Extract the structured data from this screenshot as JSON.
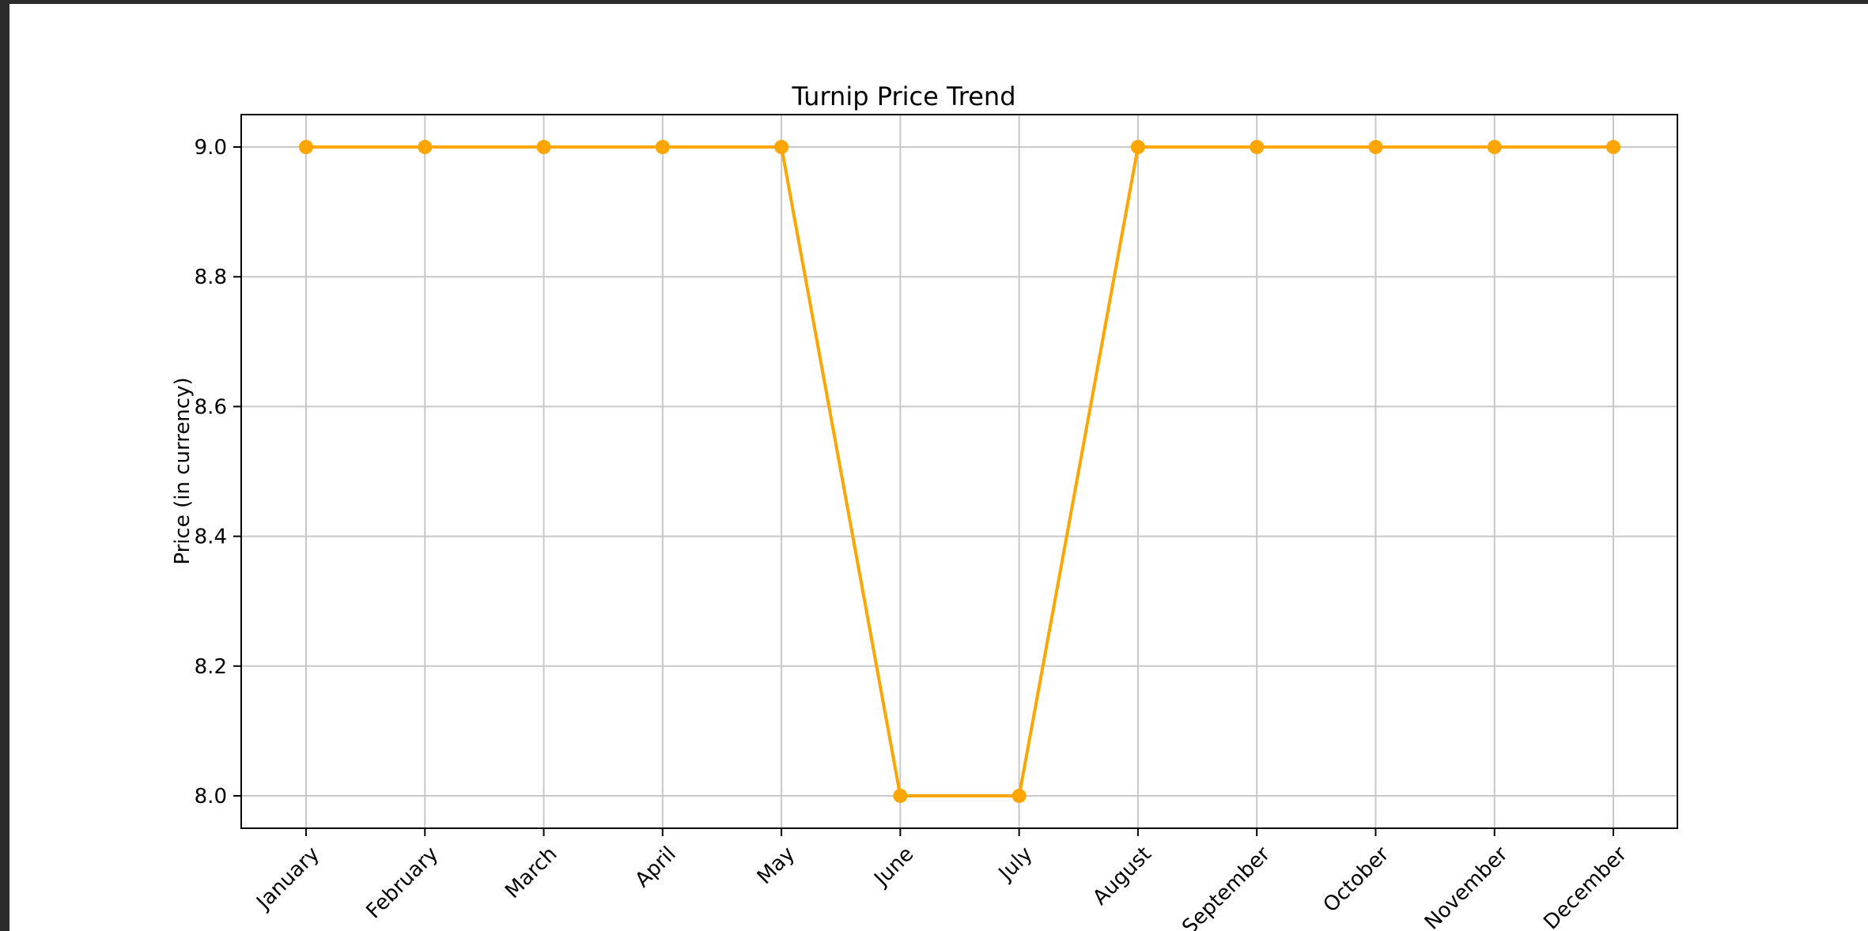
{
  "chart_data": {
    "type": "line",
    "title": "Turnip Price Trend",
    "xlabel": "",
    "ylabel": "Price (in currency)",
    "categories": [
      "January",
      "February",
      "March",
      "April",
      "May",
      "June",
      "July",
      "August",
      "September",
      "October",
      "November",
      "December"
    ],
    "series": [
      {
        "values": [
          9.0,
          9.0,
          9.0,
          9.0,
          9.0,
          8.0,
          8.0,
          9.0,
          9.0,
          9.0,
          9.0,
          9.0
        ],
        "color": "#FFA500",
        "marker": "circle"
      }
    ],
    "yticks": [
      "8.0",
      "8.2",
      "8.4",
      "8.6",
      "8.8",
      "9.0"
    ],
    "ylim": [
      7.95,
      9.05
    ],
    "grid": true,
    "legend": "none",
    "colors": {
      "line": "#FFA500",
      "grid": "#c8c8c8",
      "axes": "#000000",
      "background": "#ffffff",
      "frame": "#2b2b2b"
    }
  }
}
